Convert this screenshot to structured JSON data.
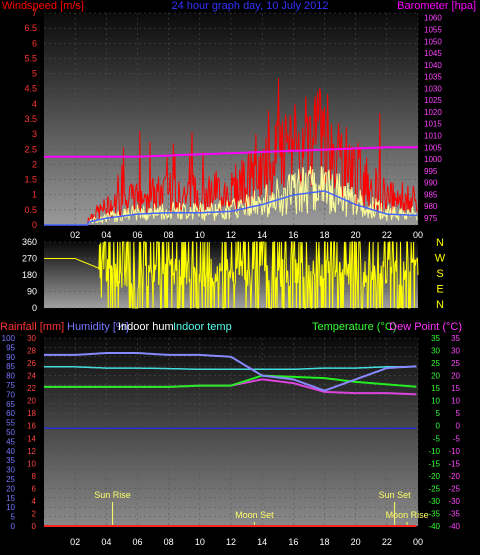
{
  "top": {
    "title": "24 hour graph day, 10 July 2012",
    "left_label": "Windspeed [m/s]",
    "right_label": "Barometer [hpa]",
    "y_ticks": [
      "7",
      "6.5",
      "6",
      "5.5",
      "5",
      "4.5",
      "4",
      "3.5",
      "3",
      "2.5",
      "2",
      "1.5",
      "1",
      "0.5",
      "0"
    ],
    "baro_ticks": [
      "1060",
      "1055",
      "1050",
      "1045",
      "1040",
      "1035",
      "1030",
      "1025",
      "1020",
      "1015",
      "1010",
      "1005",
      "1000",
      "995",
      "990",
      "985",
      "980",
      "975"
    ],
    "x_ticks": [
      "02",
      "04",
      "06",
      "08",
      "10",
      "12",
      "14",
      "16",
      "18",
      "20",
      "22",
      "00"
    ],
    "colors": {
      "wind": "#ff0000",
      "gust": "#ffff99",
      "avg": "#4466ff",
      "baro": "#ff00ff"
    }
  },
  "mid": {
    "y_ticks": [
      "360",
      "270",
      "180",
      "90",
      "0"
    ],
    "compass": [
      "N",
      "W",
      "S",
      "E",
      "N"
    ],
    "color": "#ffff00"
  },
  "bottom": {
    "labels": {
      "rain": "Rainfall [mm]",
      "humidity": "Humidity [%]",
      "indoor_hum": "Indoor hum",
      "indoor_temp": "Indoor temp",
      "temp": "Temperature (°C)",
      "dew": "Dew Point (°C)"
    },
    "left_ticks": [
      "100",
      "95",
      "90",
      "85",
      "80",
      "75",
      "70",
      "65",
      "60",
      "55",
      "50",
      "45",
      "40",
      "35",
      "30",
      "25",
      "20",
      "15",
      "10",
      "5",
      "0"
    ],
    "rain_ticks": [
      "30",
      "28",
      "26",
      "24",
      "22",
      "20",
      "18",
      "16",
      "14",
      "12",
      "10",
      "8",
      "6",
      "4",
      "2",
      "0"
    ],
    "right_ticks": [
      "35",
      "30",
      "25",
      "20",
      "15",
      "10",
      "5",
      "0",
      "-5",
      "-10",
      "-15",
      "-20",
      "-25",
      "-30",
      "-35",
      "-40"
    ],
    "x_ticks": [
      "02",
      "04",
      "06",
      "08",
      "10",
      "12",
      "14",
      "16",
      "18",
      "20",
      "22",
      "00"
    ],
    "events": [
      "Sun Rise",
      "Moon Set",
      "Sun Set",
      "Moon Rise"
    ]
  },
  "chart_data": [
    {
      "type": "line",
      "title": "24 hour graph day, 10 July 2012",
      "ylabel": "Windspeed [m/s]",
      "y2label": "Barometer [hpa]",
      "ylim": [
        0,
        7
      ],
      "y2lim": [
        972,
        1062
      ],
      "x": [
        "00",
        "02",
        "04",
        "06",
        "08",
        "10",
        "12",
        "14",
        "16",
        "18",
        "20",
        "22",
        "00"
      ],
      "series": [
        {
          "name": "Windspeed [m/s]",
          "values": [
            0,
            0,
            0.5,
            0.8,
            0.9,
            0.9,
            1.0,
            1.5,
            2.2,
            2.5,
            1.5,
            0.8,
            0.7
          ]
        },
        {
          "name": "Barometer [hpa]",
          "values": [
            1001,
            1001,
            1001,
            1001,
            1001.5,
            1002,
            1002.5,
            1003,
            1003.5,
            1004,
            1004.5,
            1005,
            1005
          ]
        }
      ]
    },
    {
      "type": "scatter",
      "ylim": [
        0,
        360
      ],
      "x": [
        "00",
        "02",
        "04",
        "06",
        "08",
        "10",
        "12",
        "14",
        "16",
        "18",
        "20",
        "22",
        "00"
      ],
      "values": [
        270,
        270,
        200,
        180,
        200,
        190,
        200,
        180,
        200,
        190,
        180,
        190,
        200
      ]
    },
    {
      "type": "line",
      "ylim": [
        0,
        100
      ],
      "y2lim": [
        -40,
        35
      ],
      "x": [
        "00",
        "02",
        "04",
        "06",
        "08",
        "10",
        "12",
        "14",
        "16",
        "18",
        "20",
        "22",
        "00"
      ],
      "series": [
        {
          "name": "Humidity [%]",
          "values": [
            91,
            91,
            92,
            92,
            91,
            91,
            90,
            80,
            78,
            72,
            78,
            84,
            85
          ]
        },
        {
          "name": "Indoor hum",
          "values": [
            52,
            52,
            52,
            52,
            52,
            52,
            52,
            52,
            52,
            52,
            52,
            52,
            52
          ]
        },
        {
          "name": "Indoor temp",
          "values": [
            23.5,
            23.5,
            23.0,
            23.0,
            22.8,
            22.5,
            22.5,
            22.5,
            22.5,
            23.0,
            23.0,
            23.5,
            23.5
          ]
        },
        {
          "name": "Temperature (°C)",
          "values": [
            15.5,
            15.5,
            15.5,
            15.5,
            15.5,
            16.0,
            16.0,
            20.0,
            19.5,
            19.0,
            17.5,
            16.5,
            15.5
          ]
        },
        {
          "name": "Dew Point (°C)",
          "values": [
            15.5,
            15.5,
            15.5,
            15.5,
            15.5,
            16.0,
            16.0,
            18.5,
            17.0,
            13.5,
            13.0,
            13.0,
            12.5
          ]
        },
        {
          "name": "Rainfall [mm]",
          "values": [
            0,
            0,
            0,
            0,
            0,
            0,
            0,
            0,
            0,
            0,
            0,
            0,
            0
          ]
        }
      ]
    }
  ]
}
